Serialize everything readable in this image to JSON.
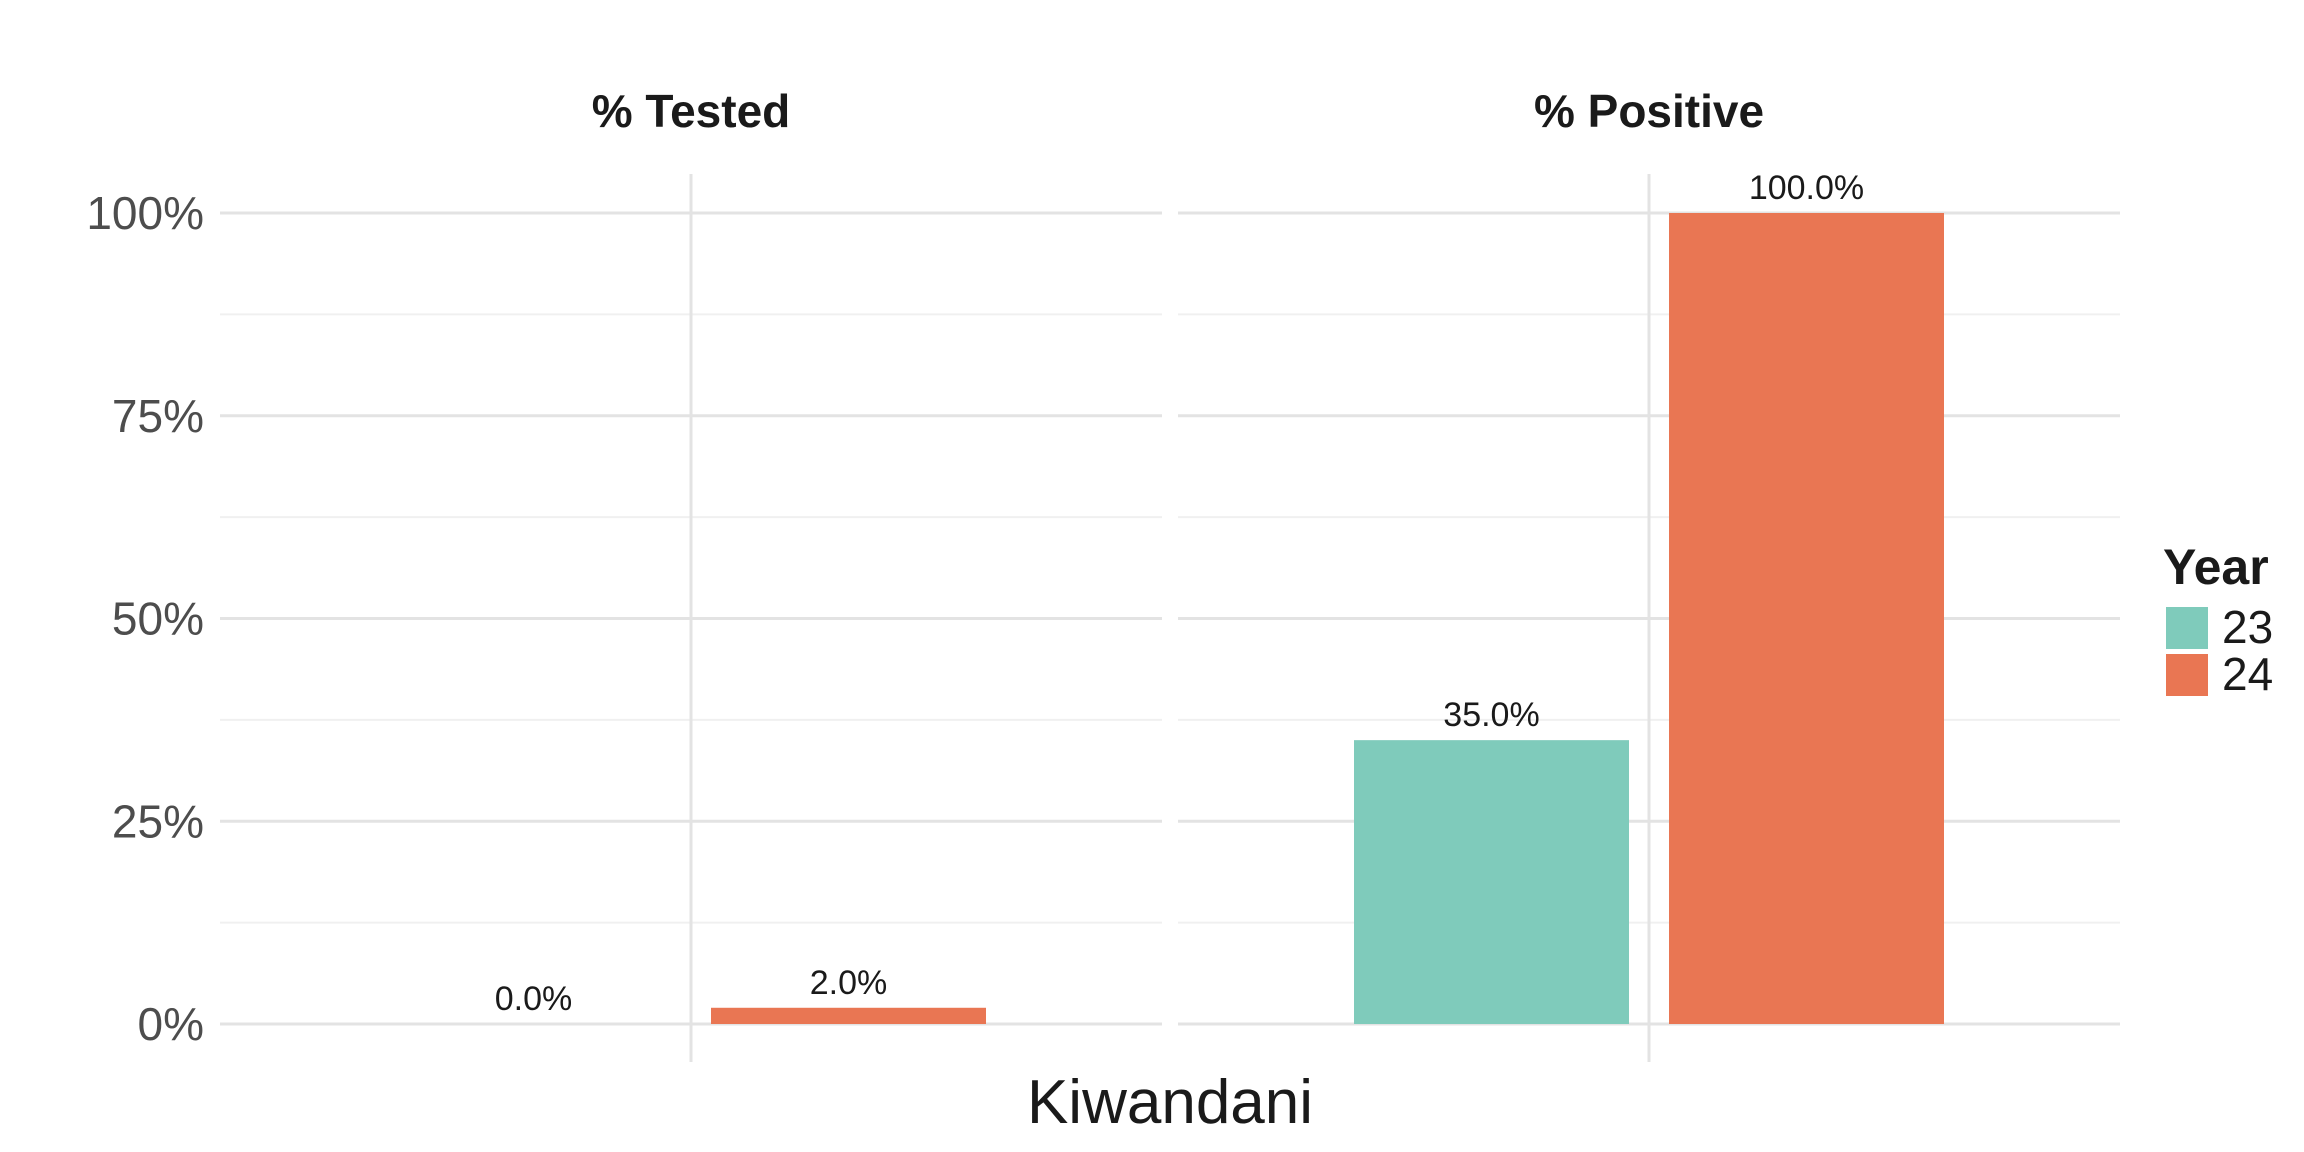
{
  "chart_data": {
    "type": "bar",
    "x_category": "Kiwandani",
    "ylim": [
      0,
      100
    ],
    "y_ticks": [
      "0%",
      "25%",
      "50%",
      "75%",
      "100%"
    ],
    "y_tick_values": [
      0,
      25,
      50,
      75,
      100
    ],
    "grid": true,
    "legend": {
      "title": "Year",
      "placement": "right",
      "entries": [
        {
          "label": "23",
          "color": "#7fcbbb"
        },
        {
          "label": "24",
          "color": "#e97653"
        }
      ]
    },
    "facets": [
      {
        "title": "% Tested",
        "series": [
          {
            "name": "23",
            "value": 0.0,
            "label": "0.0%"
          },
          {
            "name": "24",
            "value": 2.0,
            "label": "2.0%"
          }
        ]
      },
      {
        "title": "% Positive",
        "series": [
          {
            "name": "23",
            "value": 35.0,
            "label": "35.0%"
          },
          {
            "name": "24",
            "value": 100.0,
            "label": "100.0%"
          }
        ]
      }
    ]
  }
}
